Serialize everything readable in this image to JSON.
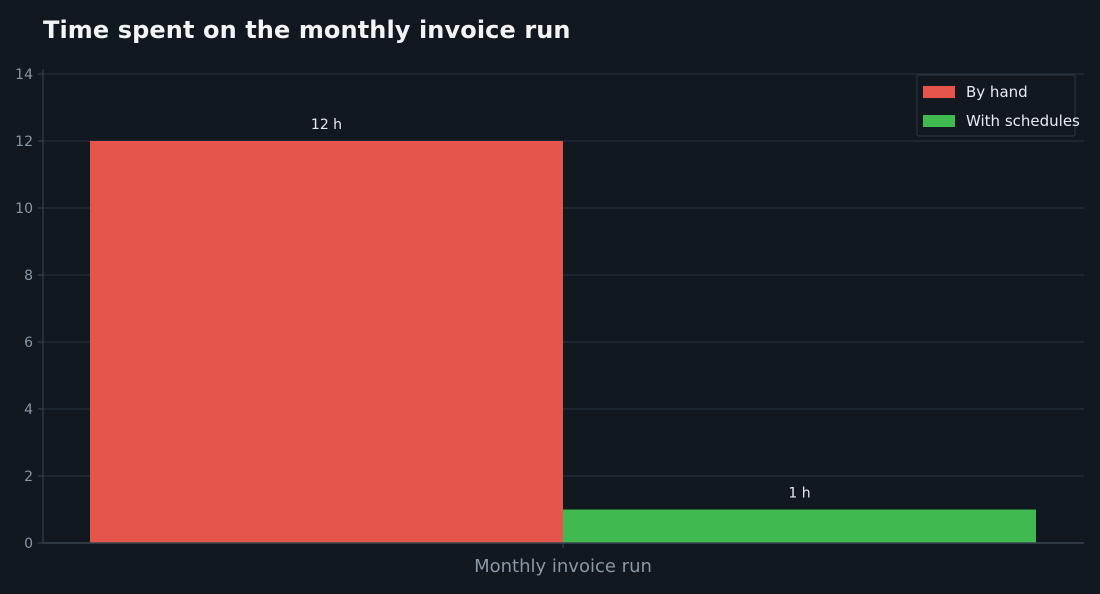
{
  "chart_data": {
    "type": "bar",
    "title": "Time spent on the monthly invoice run",
    "categories": [
      "Monthly invoice run"
    ],
    "series": [
      {
        "name": "By hand",
        "values": [
          12
        ],
        "label": "12 h",
        "color": "#e5554b"
      },
      {
        "name": "With schedules",
        "values": [
          1
        ],
        "label": "1 h",
        "color": "#3fb950"
      }
    ],
    "ylim": [
      0,
      14
    ],
    "yticks": [
      "0",
      "2",
      "4",
      "6",
      "8",
      "10",
      "12",
      "14"
    ],
    "grid": true,
    "legend_position": "top-right"
  },
  "colors": {
    "background": "#111820",
    "grid": "#1f2a35",
    "axis": "#3a4652",
    "tick_text": "#8a97a4",
    "text": "#e6ebef"
  }
}
